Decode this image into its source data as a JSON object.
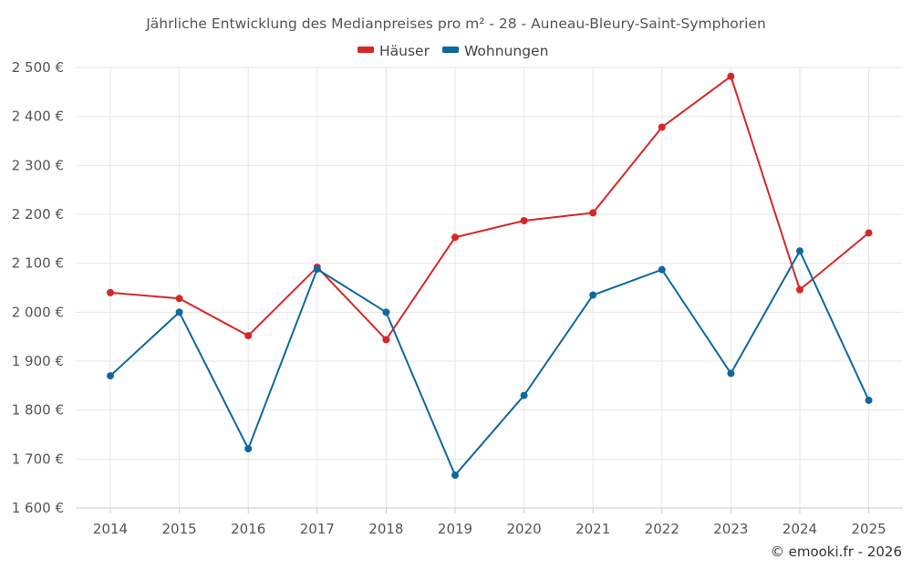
{
  "chart_data": {
    "type": "line",
    "title": "Jährliche Entwicklung des Medianpreises pro m² - 28 - Auneau-Bleury-Saint-Symphorien",
    "categories": [
      "2014",
      "2015",
      "2016",
      "2017",
      "2018",
      "2019",
      "2020",
      "2021",
      "2022",
      "2023",
      "2024",
      "2025"
    ],
    "series": [
      {
        "name": "Häuser",
        "color": "#d62728",
        "values": [
          2040,
          2028,
          1952,
          2092,
          1944,
          2153,
          2187,
          2203,
          2378,
          2482,
          2046,
          2162
        ]
      },
      {
        "name": "Wohnungen",
        "color": "#0e68a0",
        "values": [
          1870,
          2000,
          1721,
          2088,
          2000,
          1667,
          1830,
          2035,
          2087,
          1875,
          2125,
          1820
        ]
      }
    ],
    "ylim": [
      1600,
      2500
    ],
    "yticks": [
      1600,
      1700,
      1800,
      1900,
      2000,
      2100,
      2200,
      2300,
      2400,
      2500
    ],
    "ytick_labels": [
      "1 600 €",
      "1 700 €",
      "1 800 €",
      "1 900 €",
      "2 000 €",
      "2 100 €",
      "2 200 €",
      "2 300 €",
      "2 400 €",
      "2 500 €"
    ],
    "xlabel": "",
    "ylabel": "",
    "grid": true,
    "legend_position": "top-center"
  },
  "credit": "© emooki.fr - 2026"
}
